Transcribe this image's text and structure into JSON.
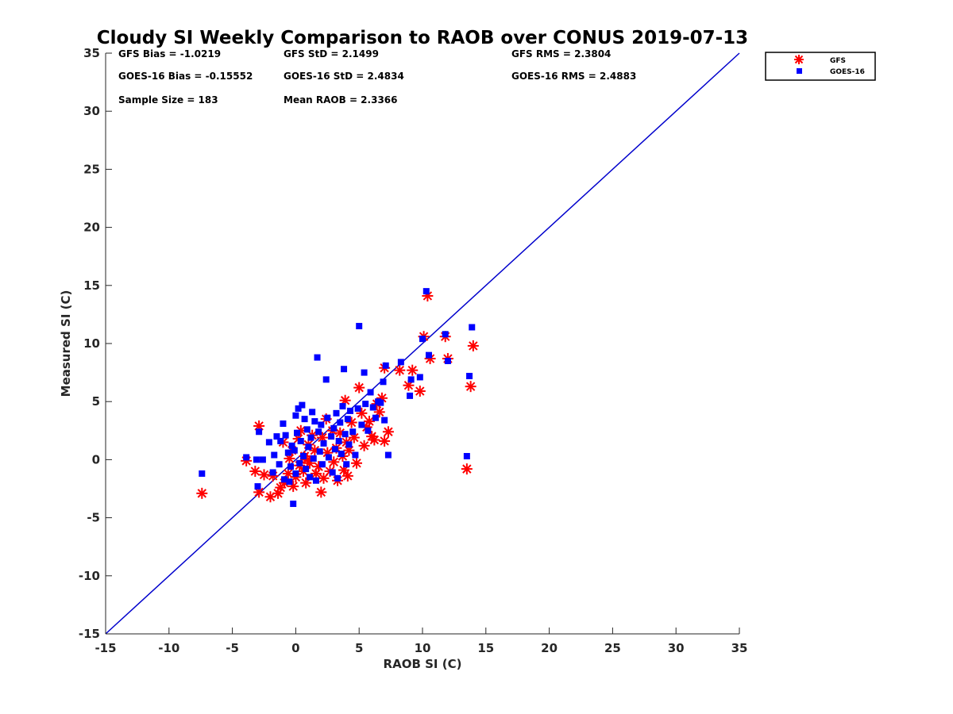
{
  "chart_data": {
    "type": "scatter",
    "title": "Cloudy SI Weekly Comparison to RAOB over CONUS 2019-07-13",
    "xlabel": "RAOB SI (C)",
    "ylabel": "Measured SI (C)",
    "xlim": [
      -15,
      35
    ],
    "ylim": [
      -15,
      35
    ],
    "xticks": [
      "-15",
      "-10",
      "-5",
      "0",
      "5",
      "10",
      "15",
      "20",
      "25",
      "30",
      "35"
    ],
    "yticks": [
      "-15",
      "-10",
      "-5",
      "0",
      "5",
      "10",
      "15",
      "20",
      "25",
      "30",
      "35"
    ],
    "grid": false,
    "legend_position": "outside top-right",
    "reference_line": {
      "x": [
        -15,
        35
      ],
      "y": [
        -15,
        35
      ],
      "color": "#0000cc"
    },
    "stats": [
      {
        "label": "GFS Bias = -1.0219"
      },
      {
        "label": "GFS StD = 2.1499"
      },
      {
        "label": "GFS RMS = 2.3804"
      },
      {
        "label": "GOES-16 Bias = -0.15552"
      },
      {
        "label": "GOES-16 StD = 2.4834"
      },
      {
        "label": "GOES-16 RMS = 2.4883"
      },
      {
        "label": "Sample Size = 183"
      },
      {
        "label": "Mean RAOB = 2.3366"
      }
    ],
    "series": [
      {
        "name": "GFS",
        "marker": "asterisk",
        "color": "#ff0000",
        "points": [
          [
            -7.4,
            -2.9
          ],
          [
            -3.9,
            -0.1
          ],
          [
            -3.2,
            -1.0
          ],
          [
            -2.9,
            2.9
          ],
          [
            -2.9,
            -2.8
          ],
          [
            -2.5,
            -1.3
          ],
          [
            -2.0,
            -3.2
          ],
          [
            -1.8,
            -1.4
          ],
          [
            -1.4,
            -2.9
          ],
          [
            -1.2,
            -2.4
          ],
          [
            -1.0,
            1.5
          ],
          [
            -0.9,
            -2.0
          ],
          [
            -0.6,
            -1.2
          ],
          [
            -0.5,
            0.1
          ],
          [
            -0.3,
            0.8
          ],
          [
            -0.2,
            -2.3
          ],
          [
            0.0,
            -1.5
          ],
          [
            0.2,
            1.8
          ],
          [
            0.3,
            -0.5
          ],
          [
            0.4,
            2.5
          ],
          [
            0.6,
            -1.0
          ],
          [
            0.7,
            0.3
          ],
          [
            0.8,
            -2.0
          ],
          [
            0.9,
            0.0
          ],
          [
            1.0,
            1.3
          ],
          [
            1.1,
            -0.3
          ],
          [
            1.3,
            2.1
          ],
          [
            1.5,
            0.8
          ],
          [
            1.6,
            -1.2
          ],
          [
            1.8,
            -0.6
          ],
          [
            2.0,
            -2.8
          ],
          [
            2.1,
            1.9
          ],
          [
            2.2,
            -1.6
          ],
          [
            2.4,
            3.5
          ],
          [
            2.5,
            0.6
          ],
          [
            2.7,
            -1.0
          ],
          [
            2.9,
            2.5
          ],
          [
            3.0,
            -0.2
          ],
          [
            3.2,
            1.0
          ],
          [
            3.3,
            -1.8
          ],
          [
            3.5,
            2.3
          ],
          [
            3.7,
            0.3
          ],
          [
            3.8,
            -0.9
          ],
          [
            3.9,
            5.1
          ],
          [
            4.0,
            1.5
          ],
          [
            4.1,
            -1.4
          ],
          [
            4.2,
            0.8
          ],
          [
            4.4,
            3.2
          ],
          [
            4.6,
            1.9
          ],
          [
            4.8,
            -0.3
          ],
          [
            5.0,
            6.2
          ],
          [
            5.2,
            4.0
          ],
          [
            5.4,
            1.2
          ],
          [
            5.6,
            2.8
          ],
          [
            5.8,
            3.3
          ],
          [
            6.0,
            2.0
          ],
          [
            6.2,
            1.7
          ],
          [
            6.4,
            4.8
          ],
          [
            6.6,
            4.1
          ],
          [
            6.8,
            5.3
          ],
          [
            7.0,
            1.6
          ],
          [
            7.0,
            7.9
          ],
          [
            7.3,
            2.4
          ],
          [
            8.2,
            7.7
          ],
          [
            8.9,
            6.4
          ],
          [
            9.2,
            7.7
          ],
          [
            9.8,
            5.9
          ],
          [
            10.1,
            10.6
          ],
          [
            10.4,
            14.1
          ],
          [
            10.6,
            8.7
          ],
          [
            11.8,
            10.6
          ],
          [
            12.0,
            8.7
          ],
          [
            13.5,
            -0.8
          ],
          [
            13.8,
            6.3
          ],
          [
            14.0,
            9.8
          ]
        ]
      },
      {
        "name": "GOES-16",
        "marker": "square",
        "color": "#0000ff",
        "points": [
          [
            -7.4,
            -1.2
          ],
          [
            -3.9,
            0.2
          ],
          [
            -3.1,
            0.0
          ],
          [
            -3.0,
            -2.3
          ],
          [
            -2.9,
            2.4
          ],
          [
            -2.6,
            0.0
          ],
          [
            -2.1,
            1.5
          ],
          [
            -1.8,
            -1.1
          ],
          [
            -1.7,
            0.4
          ],
          [
            -1.5,
            2.0
          ],
          [
            -1.3,
            -0.4
          ],
          [
            -1.2,
            1.6
          ],
          [
            -1.0,
            3.1
          ],
          [
            -0.9,
            -1.7
          ],
          [
            -0.8,
            2.1
          ],
          [
            -0.6,
            0.6
          ],
          [
            -0.5,
            -1.9
          ],
          [
            -0.4,
            -0.6
          ],
          [
            -0.3,
            1.2
          ],
          [
            -0.2,
            -3.8
          ],
          [
            -0.1,
            0.8
          ],
          [
            0.0,
            3.8
          ],
          [
            0.0,
            -1.2
          ],
          [
            0.1,
            2.3
          ],
          [
            0.2,
            4.4
          ],
          [
            0.3,
            -0.3
          ],
          [
            0.4,
            1.6
          ],
          [
            0.5,
            4.7
          ],
          [
            0.6,
            0.3
          ],
          [
            0.7,
            3.5
          ],
          [
            0.8,
            -0.8
          ],
          [
            0.9,
            2.6
          ],
          [
            1.0,
            1.1
          ],
          [
            1.1,
            -1.5
          ],
          [
            1.2,
            1.9
          ],
          [
            1.3,
            4.1
          ],
          [
            1.4,
            0.1
          ],
          [
            1.5,
            3.3
          ],
          [
            1.6,
            -1.8
          ],
          [
            1.7,
            8.8
          ],
          [
            1.8,
            2.4
          ],
          [
            1.9,
            0.7
          ],
          [
            2.0,
            3.0
          ],
          [
            2.1,
            -0.4
          ],
          [
            2.2,
            1.4
          ],
          [
            2.4,
            6.9
          ],
          [
            2.5,
            3.6
          ],
          [
            2.6,
            0.2
          ],
          [
            2.8,
            2.0
          ],
          [
            2.9,
            -1.1
          ],
          [
            3.0,
            2.7
          ],
          [
            3.1,
            0.9
          ],
          [
            3.2,
            4.0
          ],
          [
            3.3,
            -1.6
          ],
          [
            3.4,
            1.6
          ],
          [
            3.5,
            3.2
          ],
          [
            3.6,
            0.5
          ],
          [
            3.7,
            4.6
          ],
          [
            3.8,
            7.8
          ],
          [
            3.9,
            2.2
          ],
          [
            4.0,
            -0.4
          ],
          [
            4.1,
            3.5
          ],
          [
            4.2,
            1.3
          ],
          [
            4.3,
            4.2
          ],
          [
            4.5,
            2.4
          ],
          [
            4.7,
            0.4
          ],
          [
            4.9,
            4.4
          ],
          [
            5.0,
            11.5
          ],
          [
            5.2,
            3.0
          ],
          [
            5.4,
            7.5
          ],
          [
            5.5,
            4.8
          ],
          [
            5.7,
            2.5
          ],
          [
            5.9,
            5.8
          ],
          [
            6.1,
            4.5
          ],
          [
            6.3,
            3.6
          ],
          [
            6.5,
            5.0
          ],
          [
            6.7,
            4.9
          ],
          [
            6.9,
            6.7
          ],
          [
            7.0,
            3.4
          ],
          [
            7.1,
            8.1
          ],
          [
            7.3,
            0.4
          ],
          [
            8.3,
            8.4
          ],
          [
            9.0,
            5.5
          ],
          [
            9.1,
            6.9
          ],
          [
            9.8,
            7.1
          ],
          [
            10.0,
            10.4
          ],
          [
            10.3,
            14.5
          ],
          [
            10.5,
            9.0
          ],
          [
            11.8,
            10.8
          ],
          [
            12.0,
            8.5
          ],
          [
            13.5,
            0.3
          ],
          [
            13.7,
            7.2
          ],
          [
            13.9,
            11.4
          ]
        ]
      }
    ]
  }
}
